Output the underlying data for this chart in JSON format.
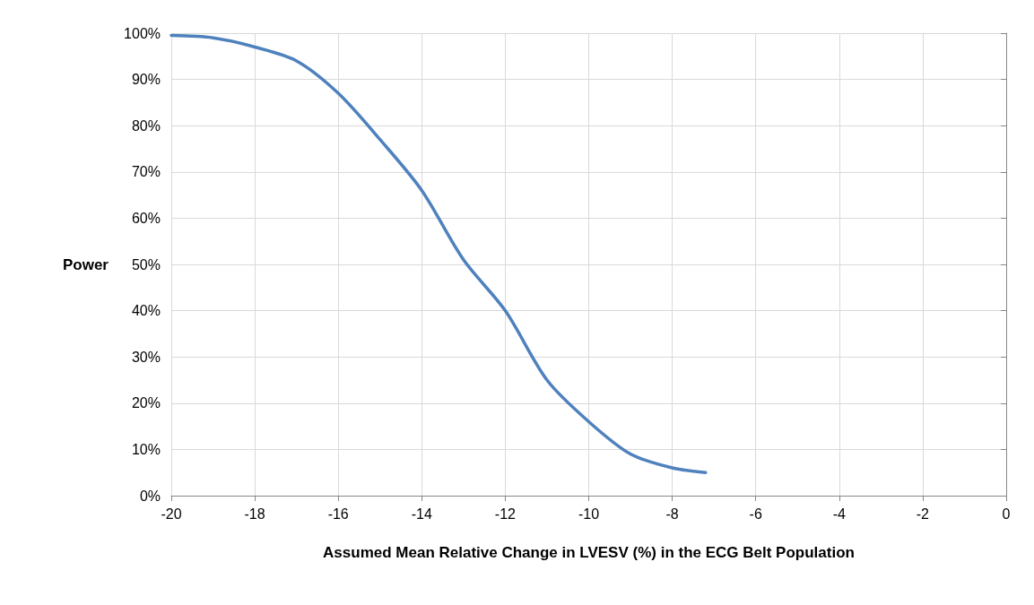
{
  "chart_data": {
    "type": "line",
    "xlabel": "Assumed Mean Relative Change in LVESV (%) in the ECG Belt Population",
    "ylabel": "Power",
    "x": [
      -20,
      -19,
      -18,
      -17,
      -16,
      -15,
      -14,
      -13,
      -12,
      -11,
      -10,
      -9,
      -8,
      -7.2
    ],
    "series": [
      {
        "color": "#4f81bd",
        "values": [
          99.5,
          99,
          97,
          94,
          87,
          77,
          66,
          51,
          40,
          25,
          16,
          9,
          6,
          5
        ]
      }
    ],
    "xlim": [
      -20,
      0
    ],
    "xticks": [
      -20,
      -18,
      -16,
      -14,
      -12,
      -10,
      -8,
      -6,
      -4,
      -2,
      0
    ],
    "ylim": [
      0,
      100
    ],
    "yticks": [
      {
        "value": 0,
        "label": "0%"
      },
      {
        "value": 10,
        "label": "10%"
      },
      {
        "value": 20,
        "label": "20%"
      },
      {
        "value": 30,
        "label": "30%"
      },
      {
        "value": 40,
        "label": "40%"
      },
      {
        "value": 50,
        "label": "50%"
      },
      {
        "value": 60,
        "label": "60%"
      },
      {
        "value": 70,
        "label": "70%"
      },
      {
        "value": 80,
        "label": "80%"
      },
      {
        "value": 90,
        "label": "90%"
      },
      {
        "value": 100,
        "label": "100%"
      }
    ],
    "grid": true,
    "marker": "none",
    "line_style": "solid"
  }
}
